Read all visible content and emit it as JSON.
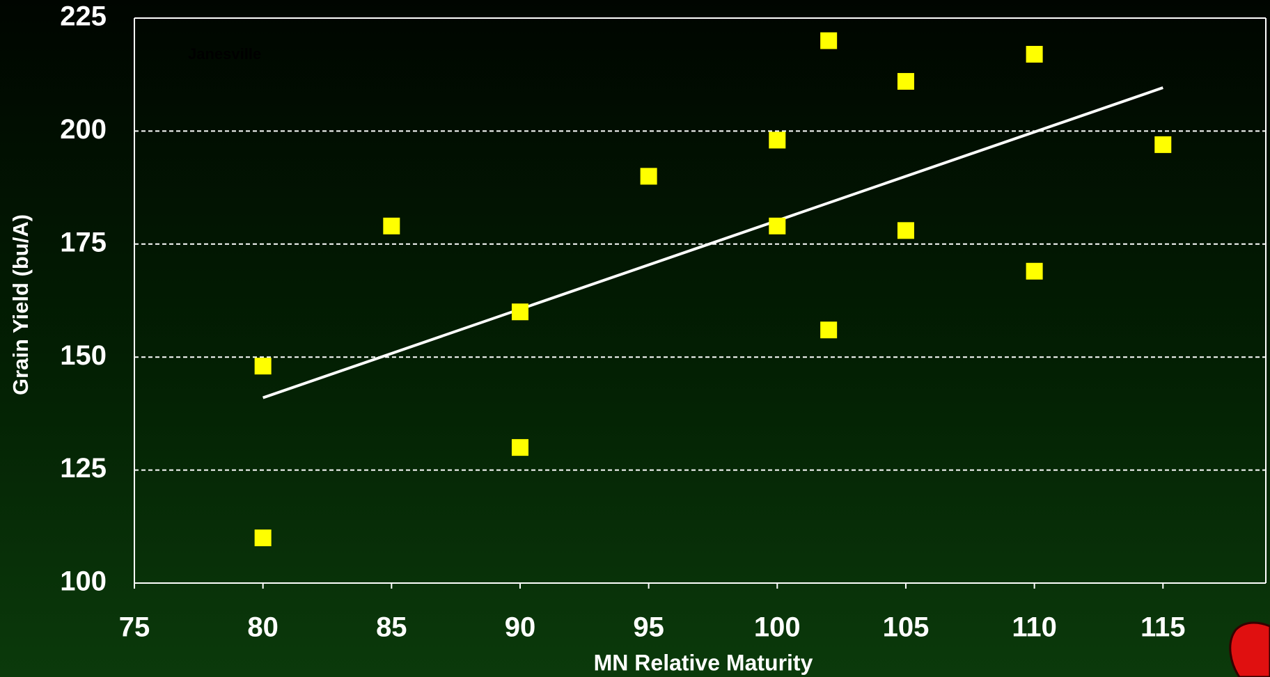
{
  "chart_data": {
    "type": "scatter",
    "annotation": "Janesville",
    "x_label": "MN Relative Maturity",
    "y_label": "Grain Yield (bu/A)",
    "x": [
      80,
      80,
      85,
      90,
      90,
      95,
      100,
      100,
      102,
      102,
      105,
      105,
      110,
      110,
      115
    ],
    "series": [
      {
        "color": "#ffff00",
        "values": [
          148,
          110,
          179,
          160,
          130,
          190,
          198,
          179,
          220,
          156,
          211,
          178,
          217,
          169,
          197
        ]
      }
    ],
    "trendline": {
      "color": "#ffffff",
      "x": [
        80,
        115
      ],
      "values": [
        141,
        209.6
      ]
    },
    "xlim": [
      75,
      119
    ],
    "xticks": [
      75,
      80,
      85,
      90,
      95,
      100,
      105,
      110,
      115
    ],
    "ylim": [
      100,
      225
    ],
    "yticks": [
      100,
      125,
      150,
      175,
      200,
      225
    ],
    "grid": true
  }
}
